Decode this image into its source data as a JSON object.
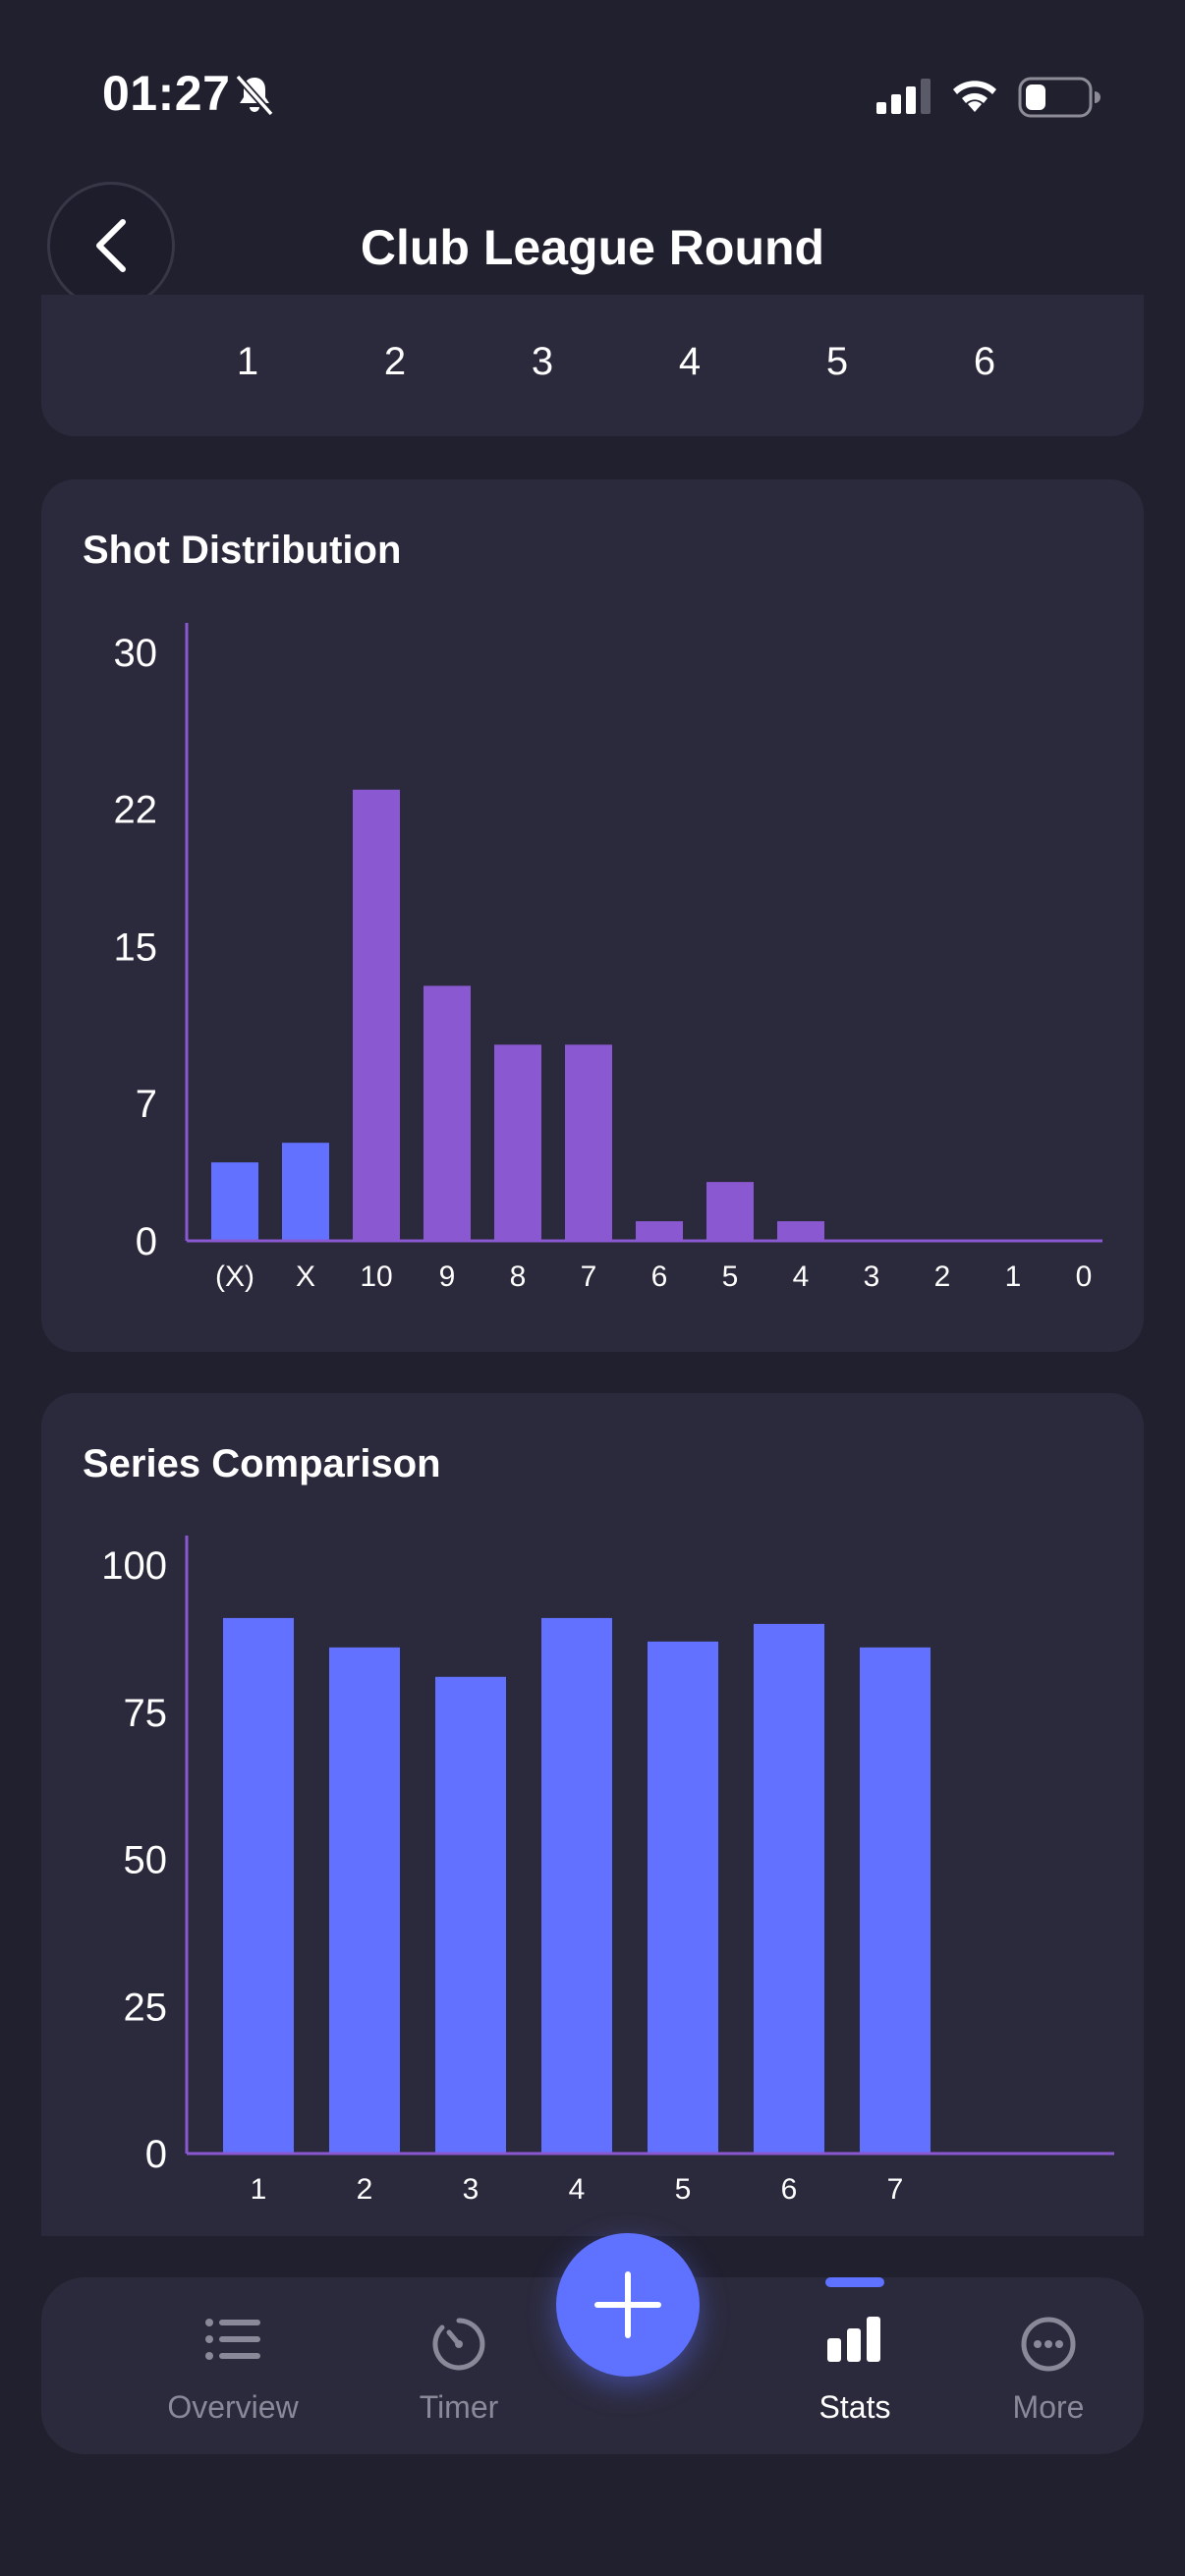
{
  "status_bar": {
    "time": "01:27"
  },
  "header": {
    "title": "Club League Round"
  },
  "top_card": {
    "numbers": [
      "1",
      "2",
      "3",
      "4",
      "5",
      "6"
    ]
  },
  "shot_card": {
    "title": "Shot Distribution",
    "chart_data": {
      "type": "bar",
      "categories": [
        "(X)",
        "X",
        "10",
        "9",
        "8",
        "7",
        "6",
        "5",
        "4",
        "3",
        "2",
        "1",
        "0"
      ],
      "values": [
        4,
        5,
        23,
        13,
        10,
        10,
        1,
        3,
        1,
        0,
        0,
        0,
        0
      ],
      "ylim": [
        0,
        30
      ],
      "yticks": [
        0,
        7,
        15,
        22,
        30
      ],
      "bar_colors": [
        "#6271ff",
        "#6271ff",
        "#8a58d0",
        "#8a58d0",
        "#8a58d0",
        "#8a58d0",
        "#8a58d0",
        "#8a58d0",
        "#8a58d0",
        "#8a58d0",
        "#8a58d0",
        "#8a58d0",
        "#8a58d0"
      ]
    }
  },
  "series_card": {
    "title": "Series Comparison",
    "chart_data": {
      "type": "bar",
      "categories": [
        "1",
        "2",
        "3",
        "4",
        "5",
        "6",
        "7"
      ],
      "values": [
        91,
        86,
        81,
        91,
        87,
        90,
        86
      ],
      "ylim": [
        0,
        100
      ],
      "yticks": [
        0,
        25,
        50,
        75,
        100
      ],
      "bar_color": "#6271ff"
    }
  },
  "tab_bar": {
    "items": [
      {
        "label": "Overview",
        "icon": "list-icon"
      },
      {
        "label": "Timer",
        "icon": "timer-icon"
      },
      {
        "label": "Stats",
        "icon": "stats-icon",
        "active": true
      },
      {
        "label": "More",
        "icon": "more-icon"
      }
    ],
    "fab_icon": "plus-icon"
  },
  "colors": {
    "accent": "#5f71ff",
    "purple": "#8a58d0",
    "background": "#21202f",
    "card": "#2b2a3c"
  }
}
